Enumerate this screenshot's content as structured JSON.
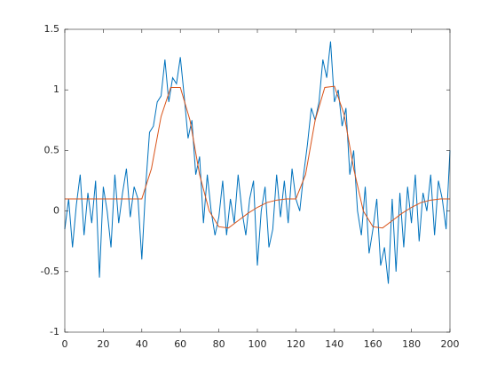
{
  "chart_data": {
    "type": "line",
    "xlim": [
      0,
      200
    ],
    "xticks": [
      0,
      20,
      40,
      60,
      80,
      100,
      120,
      140,
      160,
      180,
      200
    ],
    "ylim": [
      -1,
      1.5
    ],
    "yticks": [
      -1,
      -0.5,
      0,
      0.5,
      1,
      1.5
    ],
    "grid": false,
    "box": true,
    "series": [
      {
        "color": "#0072BD",
        "x": [
          0,
          2,
          4,
          6,
          8,
          10,
          12,
          14,
          16,
          18,
          20,
          22,
          24,
          26,
          28,
          30,
          32,
          34,
          36,
          38,
          40,
          42,
          44,
          46,
          48,
          50,
          52,
          54,
          56,
          58,
          60,
          62,
          64,
          66,
          68,
          70,
          72,
          74,
          76,
          78,
          80,
          82,
          84,
          86,
          88,
          90,
          92,
          94,
          96,
          98,
          100,
          102,
          104,
          106,
          108,
          110,
          112,
          114,
          116,
          118,
          120,
          122,
          124,
          126,
          128,
          130,
          132,
          134,
          136,
          138,
          140,
          142,
          144,
          146,
          148,
          150,
          152,
          154,
          156,
          158,
          160,
          162,
          164,
          166,
          168,
          170,
          172,
          174,
          176,
          178,
          180,
          182,
          184,
          186,
          188,
          190,
          192,
          194,
          196,
          198,
          200
        ],
        "values": [
          -0.15,
          0.1,
          -0.3,
          0.05,
          0.3,
          -0.2,
          0.15,
          -0.1,
          0.25,
          -0.55,
          0.2,
          0.0,
          -0.3,
          0.3,
          -0.1,
          0.15,
          0.35,
          -0.05,
          0.2,
          0.1,
          -0.4,
          0.2,
          0.65,
          0.7,
          0.9,
          0.95,
          1.25,
          0.9,
          1.1,
          1.05,
          1.27,
          0.95,
          0.6,
          0.75,
          0.3,
          0.45,
          -0.1,
          0.3,
          0.0,
          -0.2,
          -0.05,
          0.25,
          -0.2,
          0.1,
          -0.1,
          0.3,
          0.0,
          -0.2,
          0.1,
          0.25,
          -0.45,
          0.0,
          0.2,
          -0.3,
          -0.15,
          0.3,
          -0.05,
          0.25,
          -0.1,
          0.35,
          0.1,
          0.0,
          0.3,
          0.55,
          0.85,
          0.75,
          0.9,
          1.25,
          1.1,
          1.4,
          0.9,
          1.0,
          0.7,
          0.85,
          0.3,
          0.5,
          0.0,
          -0.2,
          0.2,
          -0.35,
          -0.15,
          0.1,
          -0.45,
          -0.3,
          -0.6,
          0.1,
          -0.5,
          0.15,
          -0.3,
          0.2,
          -0.1,
          0.3,
          -0.25,
          0.15,
          0.0,
          0.3,
          -0.2,
          0.25,
          0.1,
          -0.15,
          0.5
        ]
      },
      {
        "color": "#D95319",
        "x": [
          0,
          5,
          10,
          15,
          20,
          25,
          30,
          35,
          40,
          45,
          50,
          55,
          60,
          65,
          70,
          75,
          80,
          85,
          90,
          95,
          100,
          105,
          110,
          115,
          120,
          125,
          130,
          135,
          140,
          145,
          150,
          155,
          160,
          165,
          170,
          175,
          180,
          185,
          190,
          195,
          200
        ],
        "values": [
          0.1,
          0.1,
          0.1,
          0.1,
          0.1,
          0.1,
          0.1,
          0.1,
          0.1,
          0.35,
          0.78,
          1.02,
          1.02,
          0.75,
          0.3,
          0.0,
          -0.13,
          -0.14,
          -0.08,
          -0.02,
          0.03,
          0.07,
          0.09,
          0.1,
          0.1,
          0.3,
          0.75,
          1.02,
          1.03,
          0.8,
          0.35,
          0.0,
          -0.13,
          -0.14,
          -0.08,
          -0.02,
          0.03,
          0.07,
          0.09,
          0.1,
          0.1
        ]
      }
    ]
  }
}
